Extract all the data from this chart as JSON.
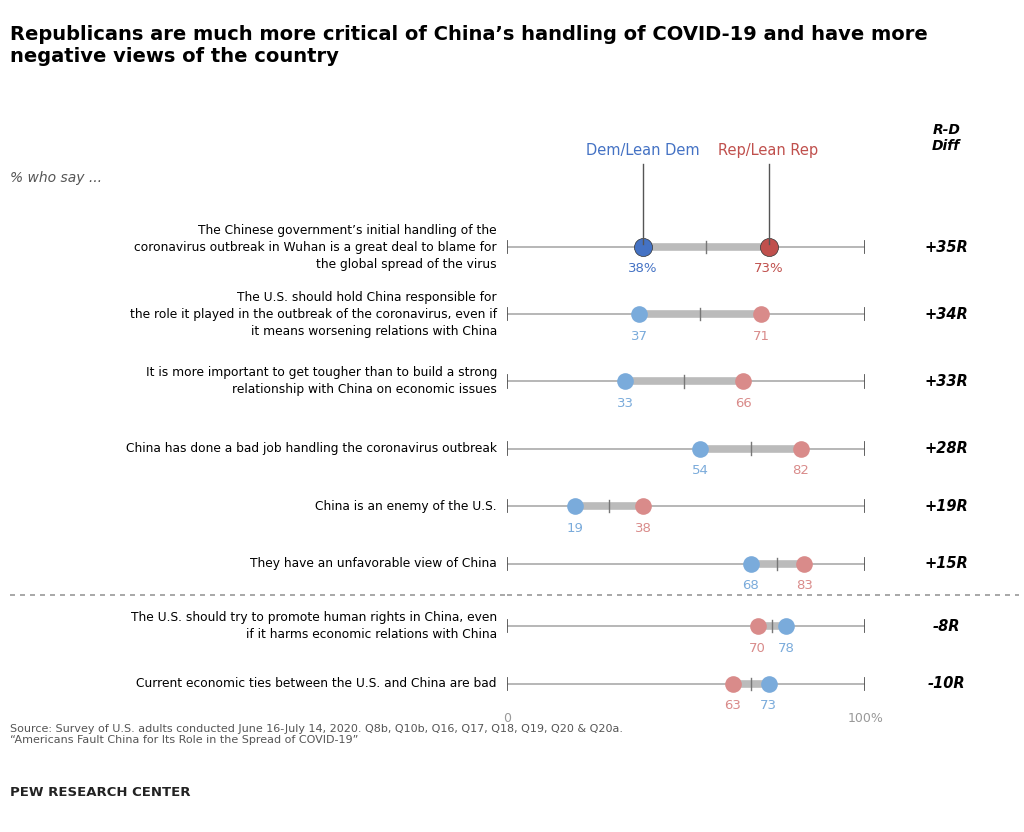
{
  "title": "Republicans are much more critical of China’s handling of COVID-19 and have more\nnegative views of the country",
  "subtitle": "% who say ...",
  "categories": [
    "The Chinese government’s initial handling of the\ncoronavirus outbreak in Wuhan is a great deal to blame for\nthe global spread of the virus",
    "The U.S. should hold China responsible for\nthe role it played in the outbreak of the coronavirus, even if\nit means worsening relations with China",
    "It is more important to get tougher than to build a strong\nrelationship with China on economic issues",
    "China has done a bad job handling the coronavirus outbreak",
    "China is an enemy of the U.S.",
    "They have an unfavorable view of China",
    "The U.S. should try to promote human rights in China, even\nif it harms economic relations with China",
    "Current economic ties between the U.S. and China are bad"
  ],
  "dem_values": [
    38,
    37,
    33,
    54,
    19,
    68,
    78,
    73
  ],
  "rep_values": [
    73,
    71,
    66,
    82,
    38,
    83,
    70,
    63
  ],
  "diff_labels": [
    "+35R",
    "+34R",
    "+33R",
    "+28R",
    "+19R",
    "+15R",
    "-8R",
    "-10R"
  ],
  "diff_positive": [
    true,
    true,
    true,
    true,
    true,
    true,
    false,
    false
  ],
  "divider_after_index": 5,
  "dem_color_dark": "#4472c4",
  "dem_color_light": "#7aabdb",
  "rep_color_dark": "#c0504d",
  "rep_color_light": "#d98b8a",
  "bg_color": "#ffffff",
  "sidebar_bg": "#ede8dc",
  "dem_label": "Dem/Lean Dem",
  "rep_label": "Rep/Lean Rep",
  "diff_header": "R-D\nDiff",
  "source_text": "Source: Survey of U.S. adults conducted June 16-July 14, 2020. Q8b, Q10b, Q16, Q17, Q18, Q19, Q20 & Q20a.\n“Americans Fault China for Its Role in the Spread of COVID-19”",
  "pew_label": "PEW RESEARCH CENTER",
  "xlim": [
    0,
    100
  ]
}
